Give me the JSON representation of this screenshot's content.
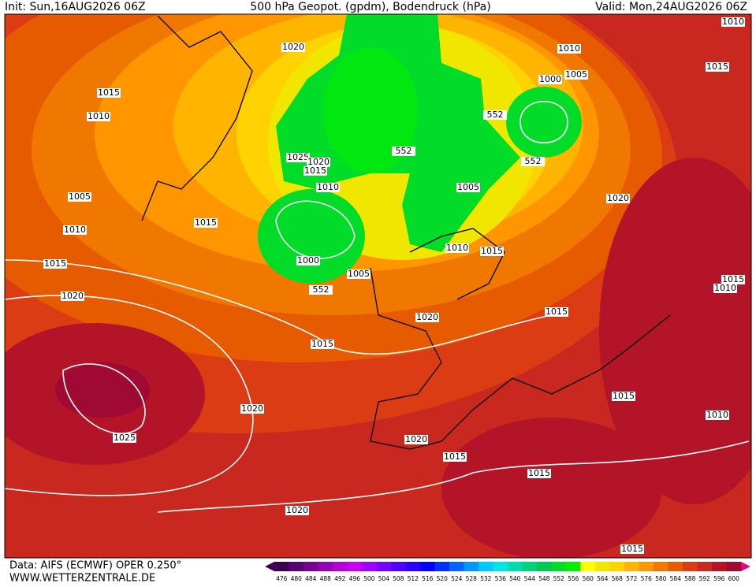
{
  "header": {
    "init": "Init: Sun,16AUG2026 06Z",
    "title": "500 hPa Geopot. (gpdm), Bodendruck (hPa)",
    "valid": "Valid: Mon,24AUG2026 06Z"
  },
  "isobar_labels": [
    1010,
    1010,
    1020,
    1005,
    1000,
    1015,
    1015,
    1010,
    552,
    552,
    552,
    1025,
    1020,
    1015,
    1010,
    1005,
    1020,
    1005,
    1015,
    1010,
    1010,
    1015,
    1000,
    1005,
    1015,
    552,
    1015,
    1010,
    1020,
    1020,
    1015,
    1015,
    1015,
    1010,
    1020,
    1025,
    1020,
    1015,
    1015,
    1020,
    1015
  ],
  "footer": {
    "source": "Data: AIFS (ECMWF) OPER 0.250°",
    "site": "WWW.WETTERZENTRALE.DE"
  },
  "colorbar": {
    "labels": [
      476,
      480,
      484,
      488,
      492,
      496,
      500,
      504,
      508,
      512,
      516,
      520,
      524,
      528,
      532,
      536,
      540,
      544,
      548,
      552,
      556,
      560,
      564,
      568,
      572,
      576,
      580,
      584,
      588,
      592,
      596,
      600
    ],
    "colors": [
      "#3c0050",
      "#5a006e",
      "#780090",
      "#9600b4",
      "#b400d2",
      "#c800f0",
      "#a000ff",
      "#7800ff",
      "#5000ff",
      "#2800ff",
      "#0000ff",
      "#0032ff",
      "#0064ff",
      "#0096ff",
      "#00c8ff",
      "#00e6e6",
      "#00dcaa",
      "#00d278",
      "#00c850",
      "#00dc28",
      "#00f000",
      "#ffff00",
      "#f0e600",
      "#ffd200",
      "#ffb400",
      "#ff9600",
      "#f07800",
      "#e65a00",
      "#dc3c14",
      "#c8281e",
      "#b41428",
      "#a00a32"
    ],
    "over_color": "#e6007e"
  }
}
